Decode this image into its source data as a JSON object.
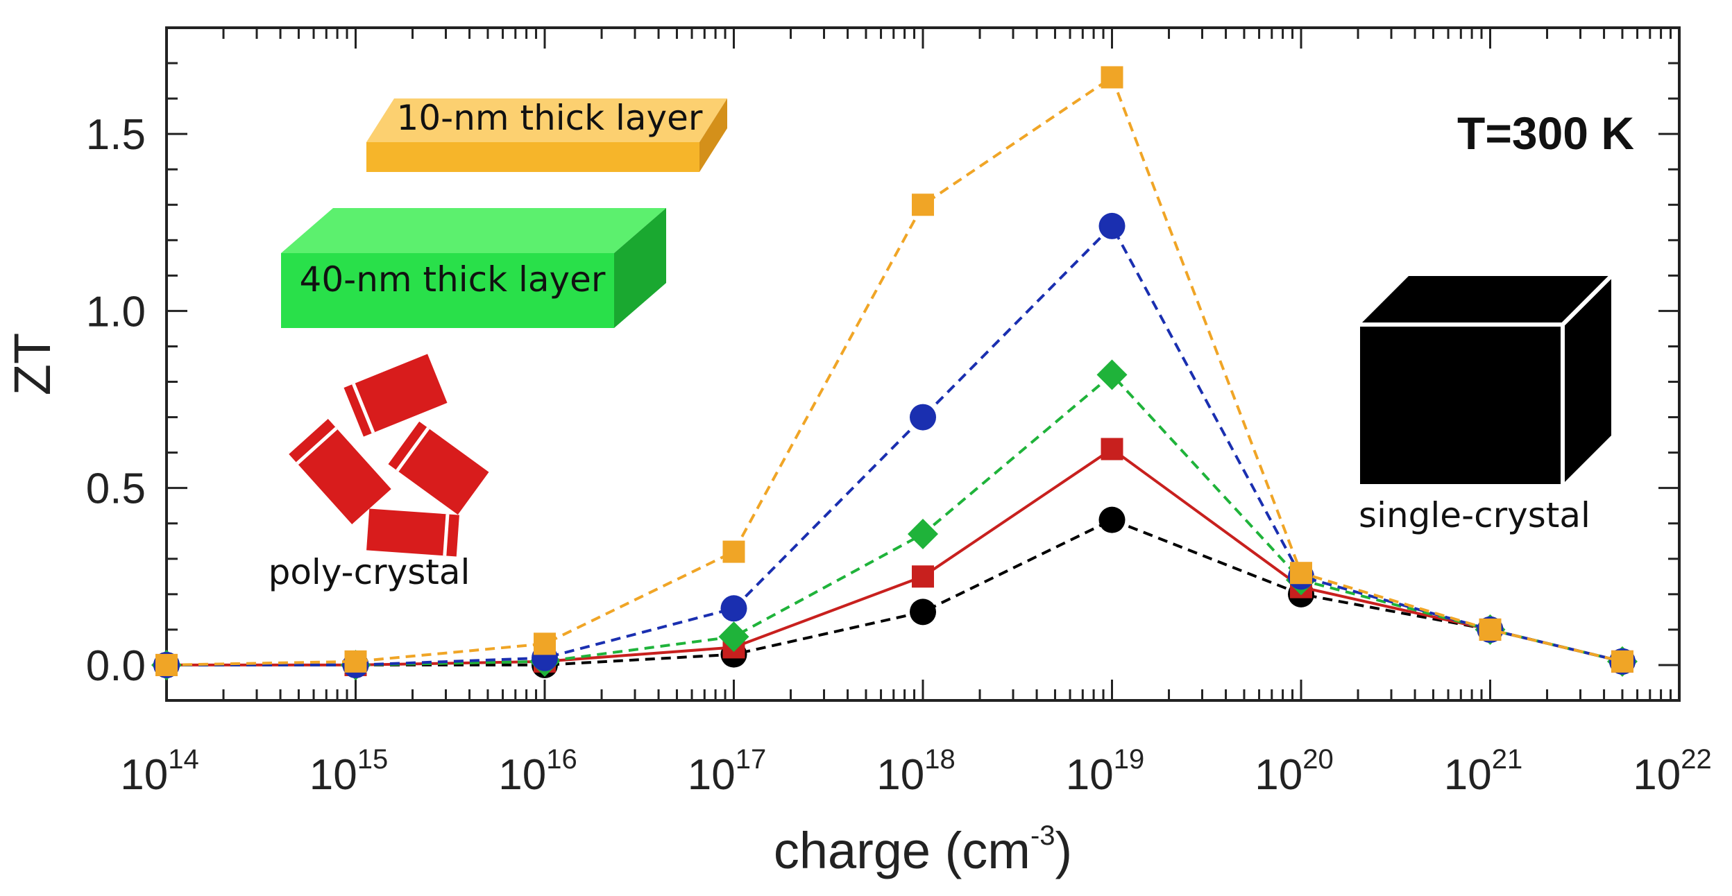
{
  "chart_data": {
    "type": "line",
    "xscale": "log",
    "xlabel": "charge (cm",
    "xlabel_exp": "-3",
    "xlabel_suffix": ")",
    "ylabel": "ZT",
    "xlim": [
      100000000000000.0,
      1e+22
    ],
    "ylim": [
      -0.1,
      1.8
    ],
    "x_ticks": [
      {
        "base": "10",
        "exp": "14",
        "value": 100000000000000.0
      },
      {
        "base": "10",
        "exp": "15",
        "value": 1000000000000000.0
      },
      {
        "base": "10",
        "exp": "16",
        "value": 1e+16
      },
      {
        "base": "10",
        "exp": "17",
        "value": 1e+17
      },
      {
        "base": "10",
        "exp": "18",
        "value": 1e+18
      },
      {
        "base": "10",
        "exp": "19",
        "value": 1e+19
      },
      {
        "base": "10",
        "exp": "20",
        "value": 1e+20
      },
      {
        "base": "10",
        "exp": "21",
        "value": 1e+21
      },
      {
        "base": "10",
        "exp": "22",
        "value": 1e+22
      }
    ],
    "y_ticks": [
      {
        "label": "0.0",
        "value": 0.0
      },
      {
        "label": "0.5",
        "value": 0.5
      },
      {
        "label": "1.0",
        "value": 1.0
      },
      {
        "label": "1.5",
        "value": 1.5
      }
    ],
    "series": [
      {
        "color": "#000000",
        "marker": "circle",
        "dash": true,
        "points": [
          [
            100000000000000.0,
            0.0
          ],
          [
            1000000000000000.0,
            0.0
          ],
          [
            1e+16,
            0.0
          ],
          [
            1e+17,
            0.03
          ],
          [
            1e+18,
            0.15
          ],
          [
            1e+19,
            0.41
          ],
          [
            1e+20,
            0.2
          ],
          [
            1e+21,
            0.1
          ],
          [
            5e+21,
            0.01
          ]
        ]
      },
      {
        "color": "#c8201e",
        "marker": "square",
        "dash": false,
        "points": [
          [
            100000000000000.0,
            0.0
          ],
          [
            1000000000000000.0,
            0.0
          ],
          [
            1e+16,
            0.01
          ],
          [
            1e+17,
            0.05
          ],
          [
            1e+18,
            0.25
          ],
          [
            1e+19,
            0.61
          ],
          [
            1e+20,
            0.22
          ],
          [
            1e+21,
            0.1
          ],
          [
            5e+21,
            0.01
          ]
        ]
      },
      {
        "color": "#1fb33a",
        "marker": "diamond",
        "dash": true,
        "points": [
          [
            100000000000000.0,
            0.0
          ],
          [
            1000000000000000.0,
            0.0
          ],
          [
            1e+16,
            0.01
          ],
          [
            1e+17,
            0.08
          ],
          [
            1e+18,
            0.37
          ],
          [
            1e+19,
            0.82
          ],
          [
            1e+20,
            0.24
          ],
          [
            1e+21,
            0.1
          ],
          [
            5e+21,
            0.01
          ]
        ]
      },
      {
        "color": "#1a2fb0",
        "marker": "circle",
        "dash": true,
        "points": [
          [
            100000000000000.0,
            0.0
          ],
          [
            1000000000000000.0,
            0.0
          ],
          [
            1e+16,
            0.02
          ],
          [
            1e+17,
            0.16
          ],
          [
            1e+18,
            0.7
          ],
          [
            1e+19,
            1.24
          ],
          [
            1e+20,
            0.25
          ],
          [
            1e+21,
            0.1
          ],
          [
            5e+21,
            0.01
          ]
        ]
      },
      {
        "color": "#f0a526",
        "marker": "square",
        "dash": true,
        "points": [
          [
            100000000000000.0,
            0.0
          ],
          [
            1000000000000000.0,
            0.01
          ],
          [
            1e+16,
            0.06
          ],
          [
            1e+17,
            0.32
          ],
          [
            1e+18,
            1.3
          ],
          [
            1e+19,
            1.66
          ],
          [
            1e+20,
            0.26
          ],
          [
            1e+21,
            0.1
          ],
          [
            5e+21,
            0.01
          ]
        ]
      }
    ],
    "annotations": {
      "temperature": "T=300 K",
      "layer10": "10-nm thick layer",
      "layer40": "40-nm thick layer",
      "poly": "poly-crystal",
      "single": "single-crystal"
    },
    "grid": false
  },
  "colors": {
    "layer10_front": "#f6b52a",
    "layer10_top": "#fcd070",
    "layer10_side": "#d4901a",
    "layer40_front": "#29e04a",
    "layer40_top": "#5cf06e",
    "layer40_side": "#1aa830",
    "poly": "#d81c1c",
    "single": "#000000"
  }
}
